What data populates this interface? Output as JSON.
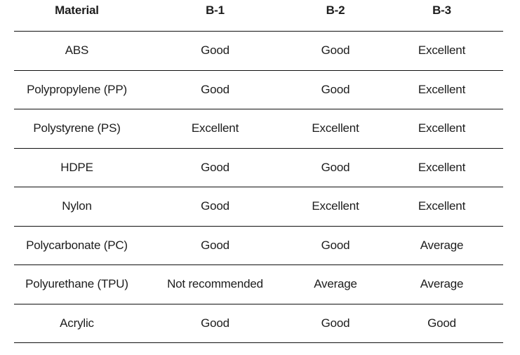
{
  "colors": {
    "background": "#ffffff",
    "text": "#1d1d1d",
    "rule": "#101010"
  },
  "chart_data": {
    "type": "table",
    "title": "",
    "columns": [
      "Material",
      "B-1",
      "B-2",
      "B-3"
    ],
    "rows": [
      [
        "ABS",
        "Good",
        "Good",
        "Excellent"
      ],
      [
        "Polypropylene (PP)",
        "Good",
        "Good",
        "Excellent"
      ],
      [
        "Polystyrene (PS)",
        "Excellent",
        "Excellent",
        "Excellent"
      ],
      [
        "HDPE",
        "Good",
        "Good",
        "Excellent"
      ],
      [
        "Nylon",
        "Good",
        "Excellent",
        "Excellent"
      ],
      [
        "Polycarbonate (PC)",
        "Good",
        "Good",
        "Average"
      ],
      [
        "Polyurethane (TPU)",
        "Not recommended",
        "Average",
        "Average"
      ],
      [
        "Acrylic",
        "Good",
        "Good",
        "Good"
      ]
    ]
  }
}
